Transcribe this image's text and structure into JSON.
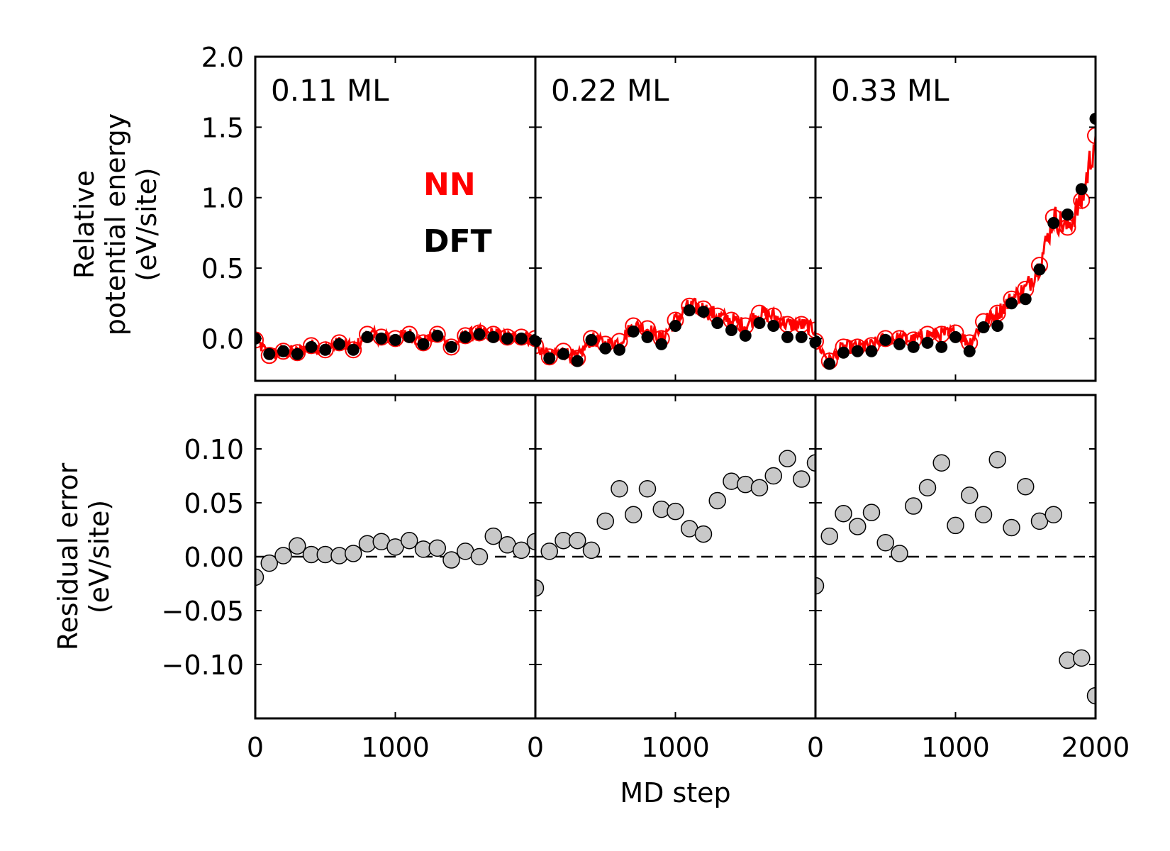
{
  "chart_data": {
    "type": "scatter",
    "xlabel": "MD step",
    "xlim": [
      0,
      2000
    ],
    "x_ticks": [
      "0",
      "1000",
      "2000"
    ],
    "grid": false,
    "legend": {
      "placement": "center of first top panel",
      "entries": [
        {
          "label": "NN",
          "color": "#ff0000"
        },
        {
          "label": "DFT",
          "color": "#000000"
        }
      ]
    },
    "top": {
      "ylabel_lines": [
        "Relative",
        "potential energy",
        "(eV/site)"
      ],
      "ylim": [
        -0.3,
        2.0
      ],
      "y_ticks": [
        {
          "v": 0.0,
          "t": "0.0"
        },
        {
          "v": 0.5,
          "t": "0.5"
        },
        {
          "v": 1.0,
          "t": "1.0"
        },
        {
          "v": 1.5,
          "t": "1.5"
        },
        {
          "v": 2.0,
          "t": "2.0"
        }
      ]
    },
    "bottom": {
      "ylabel_lines": [
        "Residual error",
        "(eV/site)"
      ],
      "ylim": [
        -0.15,
        0.15
      ],
      "y_ticks": [
        {
          "v": -0.1,
          "t": "−0.10"
        },
        {
          "v": -0.05,
          "t": "−0.05"
        },
        {
          "v": 0.0,
          "t": "0.00"
        },
        {
          "v": 0.05,
          "t": "0.05"
        },
        {
          "v": 0.1,
          "t": "0.10"
        }
      ],
      "reference_line": 0.0
    },
    "panels": [
      {
        "label": "0.11 ML",
        "x": [
          0,
          100,
          200,
          300,
          400,
          500,
          600,
          700,
          800,
          900,
          1000,
          1100,
          1200,
          1300,
          1400,
          1500,
          1600,
          1700,
          1800,
          1900,
          2000
        ],
        "dft": [
          0.0,
          -0.11,
          -0.09,
          -0.11,
          -0.06,
          -0.08,
          -0.04,
          -0.08,
          0.01,
          0.0,
          -0.01,
          0.01,
          -0.04,
          0.02,
          -0.06,
          0.01,
          0.03,
          0.01,
          0.0,
          0.0,
          -0.01
        ],
        "nn": [
          -0.01,
          -0.12,
          -0.09,
          -0.1,
          -0.05,
          -0.08,
          -0.03,
          -0.08,
          0.03,
          0.01,
          0.0,
          0.03,
          -0.03,
          0.03,
          -0.06,
          0.02,
          0.04,
          0.03,
          0.01,
          0.01,
          0.0
        ],
        "residual": [
          -0.019,
          -0.006,
          0.001,
          0.01,
          0.002,
          0.002,
          0.001,
          0.003,
          0.012,
          0.014,
          0.009,
          0.015,
          0.007,
          0.008,
          -0.003,
          0.005,
          0.0,
          0.019,
          0.011,
          0.006,
          0.014
        ]
      },
      {
        "label": "0.22 ML",
        "x": [
          0,
          100,
          200,
          300,
          400,
          500,
          600,
          700,
          800,
          900,
          1000,
          1100,
          1200,
          1300,
          1400,
          1500,
          1600,
          1700,
          1800,
          1900,
          2000
        ],
        "dft": [
          -0.02,
          -0.14,
          -0.11,
          -0.16,
          -0.01,
          -0.07,
          -0.08,
          0.05,
          0.01,
          -0.04,
          0.09,
          0.2,
          0.19,
          0.11,
          0.06,
          0.02,
          0.11,
          0.09,
          0.01,
          0.01,
          -0.03
        ],
        "nn": [
          -0.05,
          -0.13,
          -0.09,
          -0.14,
          0.0,
          -0.04,
          -0.02,
          0.09,
          0.07,
          0.0,
          0.13,
          0.23,
          0.21,
          0.16,
          0.13,
          0.09,
          0.18,
          0.16,
          0.1,
          0.1,
          0.06
        ],
        "residual": [
          -0.029,
          0.005,
          0.015,
          0.015,
          0.006,
          0.033,
          0.063,
          0.039,
          0.063,
          0.044,
          0.042,
          0.026,
          0.021,
          0.052,
          0.07,
          0.067,
          0.064,
          0.075,
          0.091,
          0.072,
          0.087
        ]
      },
      {
        "label": "0.33 ML",
        "x": [
          0,
          100,
          200,
          300,
          400,
          500,
          600,
          700,
          800,
          900,
          1000,
          1100,
          1200,
          1300,
          1400,
          1500,
          1600,
          1700,
          1800,
          1900,
          2000
        ],
        "dft": [
          -0.02,
          -0.18,
          -0.1,
          -0.09,
          -0.09,
          -0.01,
          -0.04,
          -0.06,
          -0.03,
          -0.06,
          0.01,
          -0.09,
          0.08,
          0.09,
          0.25,
          0.28,
          0.49,
          0.82,
          0.88,
          1.06,
          1.56
        ],
        "nn": [
          -0.02,
          -0.16,
          -0.06,
          -0.06,
          -0.05,
          0.0,
          0.0,
          -0.01,
          0.03,
          0.03,
          0.04,
          -0.03,
          0.12,
          0.18,
          0.28,
          0.35,
          0.52,
          0.86,
          0.79,
          0.98,
          1.44
        ],
        "residual": [
          -0.027,
          0.019,
          0.04,
          0.028,
          0.041,
          0.013,
          0.003,
          0.047,
          0.064,
          0.087,
          0.029,
          0.057,
          0.039,
          0.09,
          0.027,
          0.065,
          0.033,
          0.039,
          -0.096,
          -0.094,
          -0.129
        ]
      }
    ]
  },
  "colors": {
    "nn_line": "#ff0000",
    "nn_marker_edge": "#ff0000",
    "dft_marker": "#000000",
    "residual_fill": "#c8c8c8",
    "residual_edge": "#000000"
  }
}
